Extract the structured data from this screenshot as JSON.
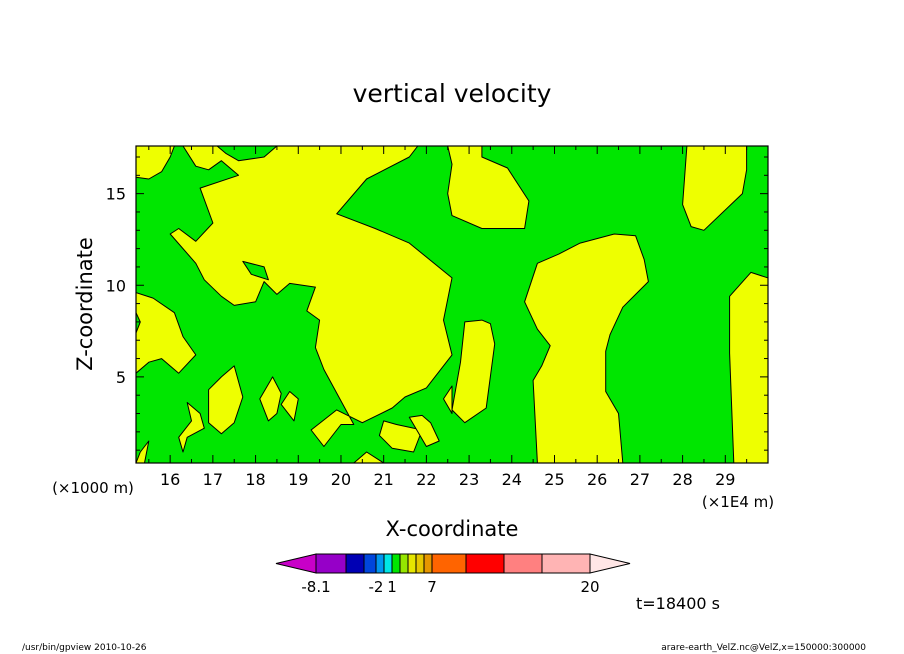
{
  "chart_data": {
    "type": "heatmap",
    "title": "vertical velocity",
    "xlabel": "X-coordinate",
    "ylabel": "Z-coordinate",
    "x_unit": "(×1E4 m)",
    "y_unit": "(×1000 m)",
    "xlim": [
      15.2,
      30.0
    ],
    "ylim": [
      0.3,
      17.6
    ],
    "x_ticks": [
      "16",
      "17",
      "18",
      "19",
      "20",
      "21",
      "22",
      "23",
      "24",
      "25",
      "26",
      "27",
      "28",
      "29"
    ],
    "y_ticks": [
      "5",
      "10",
      "15"
    ],
    "time_label": "t=18400 s",
    "colorbar": {
      "colors": [
        "#c800c8",
        "#9600c8",
        "#0000b4",
        "#0046dc",
        "#0096f0",
        "#00e6e6",
        "#00e600",
        "#96e600",
        "#e6e600",
        "#e6c800",
        "#e69600",
        "#ff6400",
        "#ff0000",
        "#ff8080",
        "#ffb4b4",
        "#ffe6e6"
      ],
      "labels": [
        "-8.1",
        "-2",
        "1",
        "7",
        "20"
      ]
    },
    "field_colors": {
      "low": "#00e600",
      "high": "#eeff00"
    },
    "regions": [
      {
        "level": "high",
        "points": [
          [
            15.2,
            17.6
          ],
          [
            16.1,
            17.6
          ],
          [
            16.0,
            17.0
          ],
          [
            15.8,
            16.2
          ],
          [
            15.5,
            15.8
          ],
          [
            15.2,
            15.9
          ]
        ]
      },
      {
        "level": "high",
        "points": [
          [
            16.3,
            17.6
          ],
          [
            17.1,
            17.6
          ],
          [
            17.3,
            17.2
          ],
          [
            17.6,
            16.8
          ],
          [
            18.2,
            17.0
          ],
          [
            18.5,
            17.6
          ],
          [
            21.8,
            17.6
          ],
          [
            21.6,
            17.0
          ],
          [
            20.6,
            15.8
          ],
          [
            19.9,
            13.9
          ],
          [
            20.8,
            13.1
          ],
          [
            21.6,
            12.3
          ],
          [
            22.6,
            10.4
          ],
          [
            22.4,
            8.1
          ],
          [
            22.6,
            6.2
          ],
          [
            22.0,
            4.4
          ],
          [
            21.5,
            3.9
          ],
          [
            21.2,
            3.3
          ],
          [
            20.5,
            2.5
          ],
          [
            19.9,
            3.2
          ],
          [
            19.3,
            2.1
          ],
          [
            19.6,
            1.2
          ],
          [
            20.0,
            2.4
          ],
          [
            20.3,
            2.4
          ],
          [
            19.6,
            5.4
          ],
          [
            19.4,
            6.6
          ],
          [
            19.5,
            8.1
          ],
          [
            19.2,
            8.6
          ],
          [
            19.4,
            9.9
          ],
          [
            18.8,
            10.1
          ],
          [
            18.5,
            9.5
          ],
          [
            18.2,
            10.2
          ],
          [
            18.0,
            9.1
          ],
          [
            17.5,
            8.9
          ],
          [
            17.2,
            9.4
          ],
          [
            16.8,
            10.3
          ],
          [
            16.6,
            11.2
          ],
          [
            16.0,
            12.8
          ],
          [
            16.2,
            13.1
          ],
          [
            16.6,
            12.4
          ],
          [
            17.0,
            13.4
          ],
          [
            16.7,
            15.3
          ],
          [
            17.6,
            16.0
          ],
          [
            17.2,
            16.8
          ],
          [
            16.9,
            16.3
          ],
          [
            16.6,
            16.5
          ]
        ]
      },
      {
        "level": "high",
        "points": [
          [
            15.2,
            9.6
          ],
          [
            15.6,
            9.3
          ],
          [
            16.1,
            8.5
          ],
          [
            16.3,
            7.2
          ],
          [
            16.6,
            6.2
          ],
          [
            16.2,
            5.2
          ],
          [
            15.8,
            6.0
          ],
          [
            15.5,
            5.8
          ],
          [
            15.2,
            5.2
          ]
        ]
      },
      {
        "level": "high",
        "points": [
          [
            22.5,
            17.6
          ],
          [
            23.3,
            17.6
          ],
          [
            23.3,
            17.0
          ],
          [
            23.9,
            16.4
          ],
          [
            24.4,
            14.6
          ],
          [
            24.3,
            13.1
          ],
          [
            23.3,
            13.1
          ],
          [
            22.6,
            13.8
          ],
          [
            22.5,
            15.0
          ],
          [
            22.6,
            16.6
          ]
        ]
      },
      {
        "level": "high",
        "points": [
          [
            24.3,
            9.1
          ],
          [
            24.6,
            11.2
          ],
          [
            25.1,
            11.7
          ],
          [
            25.6,
            12.3
          ],
          [
            26.4,
            12.8
          ],
          [
            26.9,
            12.7
          ],
          [
            27.1,
            11.4
          ],
          [
            27.2,
            10.2
          ],
          [
            26.6,
            8.8
          ],
          [
            26.3,
            7.3
          ],
          [
            26.2,
            6.4
          ],
          [
            26.2,
            4.2
          ],
          [
            26.5,
            3.0
          ],
          [
            26.6,
            0.3
          ],
          [
            24.6,
            0.3
          ],
          [
            24.5,
            4.8
          ],
          [
            24.7,
            5.6
          ],
          [
            24.9,
            6.7
          ],
          [
            24.6,
            7.6
          ]
        ]
      },
      {
        "level": "high",
        "points": [
          [
            28.1,
            17.6
          ],
          [
            29.5,
            17.6
          ],
          [
            29.5,
            16.3
          ],
          [
            29.4,
            15.0
          ],
          [
            28.5,
            13.0
          ],
          [
            28.2,
            13.2
          ],
          [
            28.0,
            14.4
          ]
        ]
      },
      {
        "level": "high",
        "points": [
          [
            29.1,
            9.4
          ],
          [
            29.6,
            10.7
          ],
          [
            30.0,
            10.4
          ],
          [
            30.0,
            0.3
          ],
          [
            29.2,
            0.3
          ],
          [
            29.1,
            6.3
          ]
        ]
      },
      {
        "level": "high",
        "points": [
          [
            22.9,
            8.0
          ],
          [
            23.3,
            8.1
          ],
          [
            23.5,
            7.9
          ],
          [
            23.6,
            6.8
          ],
          [
            23.4,
            3.3
          ],
          [
            22.9,
            2.5
          ],
          [
            22.6,
            3.2
          ],
          [
            22.8,
            5.8
          ]
        ]
      },
      {
        "level": "high",
        "points": [
          [
            16.4,
            3.6
          ],
          [
            16.5,
            2.6
          ],
          [
            16.2,
            1.7
          ],
          [
            16.3,
            0.9
          ],
          [
            16.4,
            1.7
          ],
          [
            16.8,
            2.2
          ],
          [
            16.7,
            3.0
          ]
        ]
      },
      {
        "level": "high",
        "points": [
          [
            16.9,
            4.3
          ],
          [
            16.9,
            2.5
          ],
          [
            17.2,
            1.9
          ],
          [
            17.5,
            2.5
          ],
          [
            17.7,
            3.9
          ],
          [
            17.5,
            5.6
          ],
          [
            17.2,
            5.0
          ]
        ]
      },
      {
        "level": "high",
        "points": [
          [
            18.1,
            3.8
          ],
          [
            18.3,
            2.6
          ],
          [
            18.5,
            3.0
          ],
          [
            18.6,
            4.1
          ],
          [
            18.4,
            5.0
          ]
        ]
      },
      {
        "level": "high",
        "points": [
          [
            18.6,
            3.5
          ],
          [
            18.9,
            2.6
          ],
          [
            19.0,
            3.8
          ],
          [
            18.8,
            4.2
          ]
        ]
      },
      {
        "level": "high",
        "points": [
          [
            21.0,
            2.6
          ],
          [
            21.3,
            2.4
          ],
          [
            21.9,
            2.1
          ],
          [
            21.7,
            0.9
          ],
          [
            21.2,
            1.1
          ],
          [
            20.9,
            1.8
          ]
        ]
      },
      {
        "level": "high",
        "points": [
          [
            21.6,
            2.8
          ],
          [
            21.9,
            2.9
          ],
          [
            22.1,
            2.5
          ],
          [
            22.3,
            1.5
          ],
          [
            22.0,
            1.2
          ],
          [
            21.8,
            2.0
          ]
        ]
      },
      {
        "level": "high",
        "points": [
          [
            20.3,
            0.3
          ],
          [
            20.6,
            0.9
          ],
          [
            21.0,
            0.3
          ]
        ]
      },
      {
        "level": "high",
        "points": [
          [
            15.3,
            0.9
          ],
          [
            15.5,
            1.5
          ],
          [
            15.4,
            0.3
          ],
          [
            15.2,
            0.3
          ]
        ]
      },
      {
        "level": "high",
        "points": [
          [
            22.4,
            3.8
          ],
          [
            22.6,
            3.0
          ],
          [
            22.6,
            4.5
          ]
        ]
      },
      {
        "level": "low",
        "points": [
          [
            17.7,
            11.3
          ],
          [
            18.2,
            11.0
          ],
          [
            18.3,
            10.3
          ],
          [
            17.9,
            10.6
          ]
        ]
      },
      {
        "level": "low",
        "points": [
          [
            15.2,
            8.5
          ],
          [
            15.3,
            8.0
          ],
          [
            15.2,
            7.4
          ]
        ]
      }
    ]
  },
  "footer": {
    "left": "/usr/bin/gpview   2010-10-26",
    "right": "arare-earth_VelZ.nc@VelZ,x=150000:300000"
  }
}
